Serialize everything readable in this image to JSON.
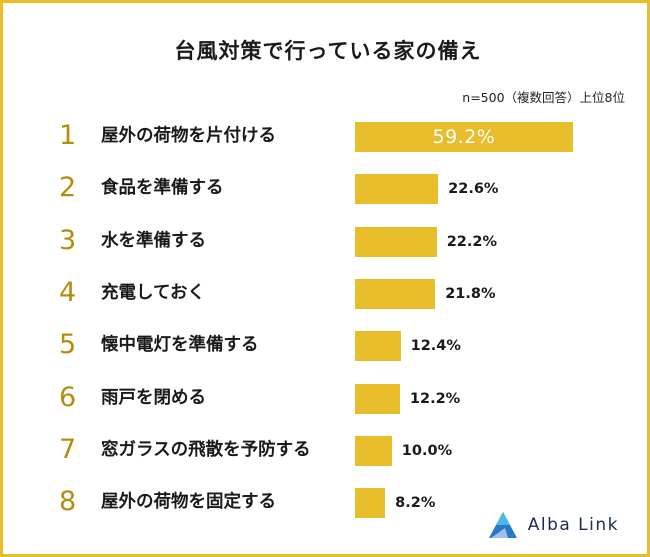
{
  "title": "台風対策で行っている家の備え",
  "note": "n=500（複数回答）上位8位",
  "brand": "Alba Link",
  "colors": {
    "bar": "#e8bd2c",
    "rank": "#b48d0e",
    "border": "#e8bd2c"
  },
  "chart_data": {
    "type": "bar",
    "orientation": "horizontal",
    "title": "台風対策で行っている家の備え",
    "ranks": [
      "1",
      "2",
      "3",
      "4",
      "5",
      "6",
      "7",
      "8"
    ],
    "categories": [
      "屋外の荷物を片付ける",
      "食品を準備する",
      "水を準備する",
      "充電しておく",
      "懐中電灯を準備する",
      "雨戸を閉める",
      "窓ガラスの飛散を予防する",
      "屋外の荷物を固定する"
    ],
    "values": [
      59.2,
      22.6,
      22.2,
      21.8,
      12.4,
      12.2,
      10.0,
      8.2
    ],
    "value_labels": [
      "59.2%",
      "22.6%",
      "22.2%",
      "21.8%",
      "12.4%",
      "12.2%",
      "10.0%",
      "8.2%"
    ],
    "unit": "%",
    "grid": false
  }
}
